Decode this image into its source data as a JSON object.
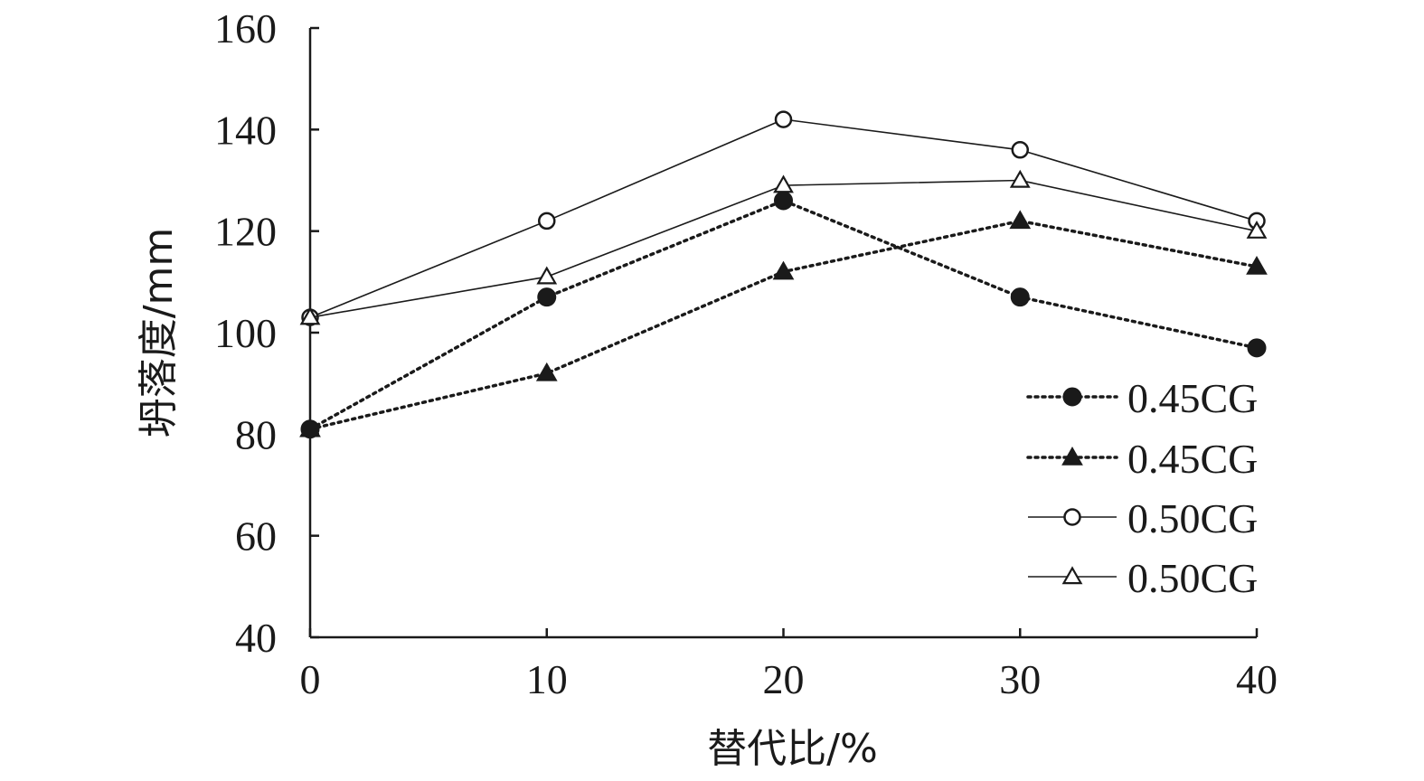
{
  "chart_data": {
    "type": "line",
    "title": "",
    "xlabel": "替代比/%",
    "ylabel": "坍落度/mm",
    "x": [
      0,
      10,
      20,
      30,
      40
    ],
    "xlim": [
      0,
      40
    ],
    "ylim": [
      40,
      160
    ],
    "xticks": [
      "0",
      "10",
      "20",
      "30",
      "40"
    ],
    "yticks": [
      "40",
      "60",
      "80",
      "100",
      "120",
      "140",
      "160"
    ],
    "grid": false,
    "legend_position": "right",
    "series": [
      {
        "name": "0.45CG",
        "marker": "filled-circle",
        "line": "dotted",
        "values": [
          81,
          107,
          126,
          107,
          97
        ]
      },
      {
        "name": "0.45CG",
        "marker": "filled-triangle",
        "line": "dotted",
        "values": [
          81,
          92,
          112,
          122,
          113
        ]
      },
      {
        "name": "0.50CG",
        "marker": "open-circle",
        "line": "solid",
        "values": [
          103,
          122,
          142,
          136,
          122
        ]
      },
      {
        "name": "0.50CG",
        "marker": "open-triangle",
        "line": "solid",
        "values": [
          103,
          111,
          129,
          130,
          120
        ]
      }
    ],
    "colors": {
      "line": "#1a1a1a",
      "open_fill": "#ffffff"
    }
  }
}
